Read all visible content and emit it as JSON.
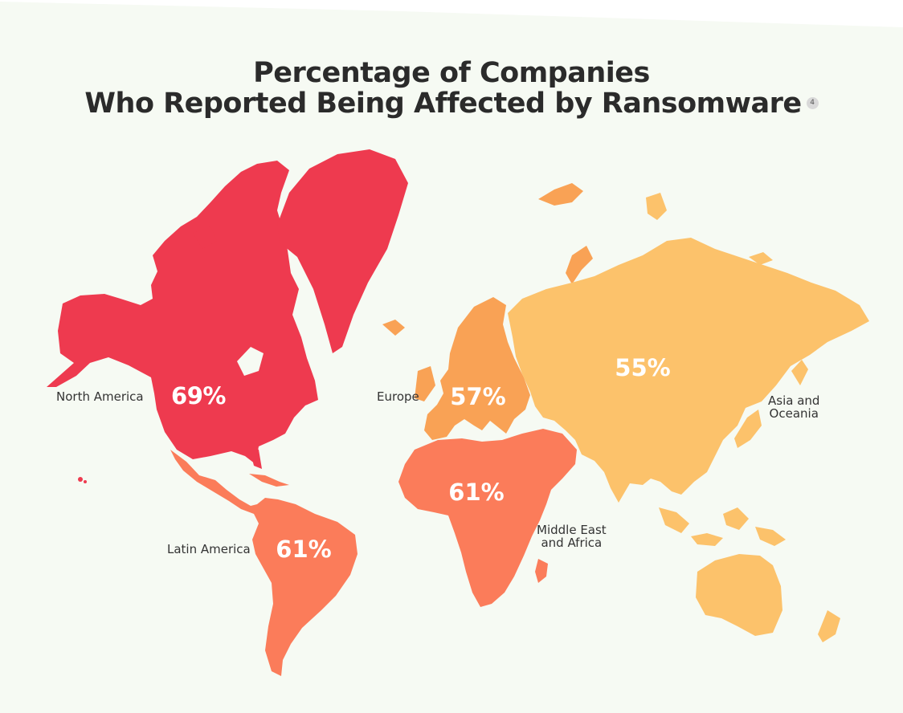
{
  "title": {
    "line1": "Percentage of Companies",
    "line2": "Who Reported Being Affected by Ransomware",
    "footnote": "4"
  },
  "colors": {
    "background": "#f6faf3",
    "north_america": "#ee3a4f",
    "latin_america": "#fb7c5a",
    "middle_east_africa": "#fb7c5a",
    "europe": "#f9a255",
    "asia_oceania": "#fcc26b",
    "label_text": "#333333",
    "percent_text": "#ffffff"
  },
  "regions": [
    {
      "id": "north-america",
      "name": "North America",
      "percent": "69%"
    },
    {
      "id": "latin-america",
      "name": "Latin America",
      "percent": "61%"
    },
    {
      "id": "europe",
      "name": "Europe",
      "percent": "57%"
    },
    {
      "id": "middle-east-africa",
      "name_line1": "Middle East",
      "name_line2": "and Africa",
      "percent": "61%"
    },
    {
      "id": "asia-oceania",
      "name_line1": "Asia and",
      "name_line2": "Oceania",
      "percent": "55%"
    }
  ]
}
